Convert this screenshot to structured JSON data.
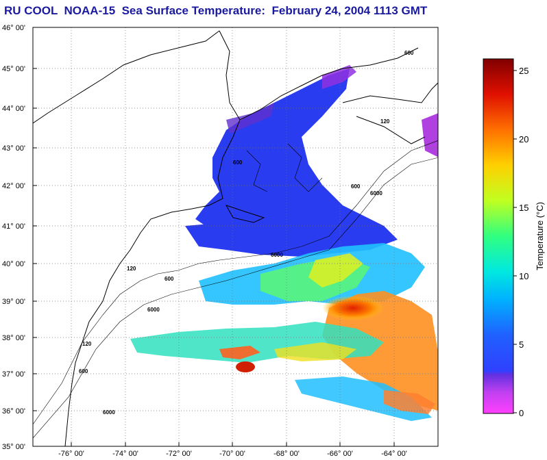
{
  "title": "RU COOL  NOAA-15  Sea Surface Temperature:  February 24, 2004 1113 GMT",
  "map": {
    "lat_labels": [
      "46° 00'",
      "45° 00'",
      "44° 00'",
      "43° 00'",
      "42° 00'",
      "41° 00'",
      "40° 00'",
      "39° 00'",
      "38° 00'",
      "37° 00'",
      "36° 00'",
      "35° 00'"
    ],
    "lon_labels": [
      "-76° 00'",
      "-74° 00'",
      "-72° 00'",
      "-70° 00'",
      "-68° 00'",
      "-66° 00'",
      "-64° 00'"
    ],
    "isobath_labels": [
      "600",
      "6000",
      "120",
      "600",
      "6000",
      "120",
      "600",
      "6000",
      "600",
      "600",
      "6000",
      "120"
    ]
  },
  "colorbar": {
    "label": "Temperature (°C)",
    "ticks": [
      "25",
      "20",
      "15",
      "10",
      "5",
      "0"
    ],
    "stops": [
      "#ff40ff",
      "#a030e0",
      "#3040ff",
      "#2080ff",
      "#00e0ff",
      "#30ff80",
      "#d0ff20",
      "#ffd000",
      "#ff6000",
      "#d00000",
      "#800000"
    ]
  }
}
